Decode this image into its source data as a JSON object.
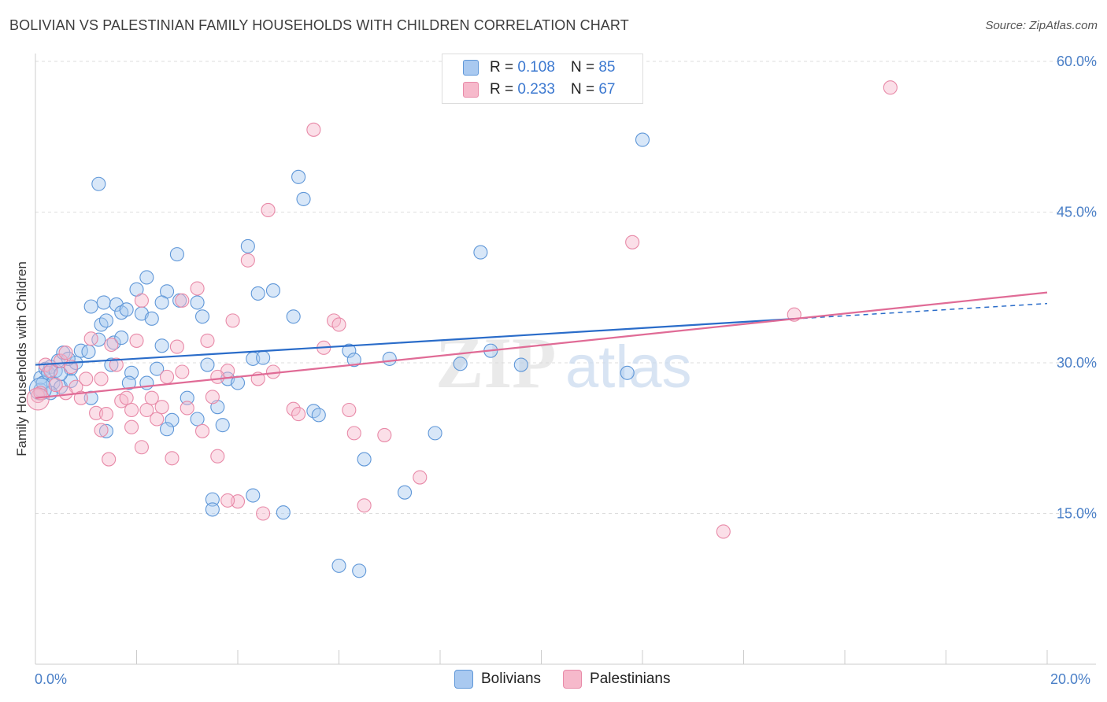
{
  "title": "BOLIVIAN VS PALESTINIAN FAMILY HOUSEHOLDS WITH CHILDREN CORRELATION CHART",
  "source": "Source: ZipAtlas.com",
  "watermark": {
    "zip": "ZIP",
    "atlas": "atlas"
  },
  "legend": {
    "rows": [
      {
        "r_label": "R =",
        "r_value": "0.108",
        "n_label": "N =",
        "n_value": "85"
      },
      {
        "r_label": "R =",
        "r_value": "0.233",
        "n_label": "N =",
        "n_value": "67"
      }
    ]
  },
  "bottom_legend": {
    "bolivians": "Bolivians",
    "palestinians": "Palestinians"
  },
  "colors": {
    "blue_fill": "#a9c9f0",
    "blue_stroke": "#5f97d8",
    "blue_line": "#2a6cc9",
    "pink_fill": "#f6b9cb",
    "pink_stroke": "#e88aa8",
    "pink_line": "#e06b96",
    "tick_text": "#4a7fc7"
  },
  "chart_data": {
    "type": "scatter",
    "title": "BOLIVIAN VS PALESTINIAN FAMILY HOUSEHOLDS WITH CHILDREN CORRELATION CHART",
    "xlabel": "",
    "ylabel": "Family Households with Children",
    "xlim": [
      0,
      20
    ],
    "ylim": [
      0,
      60
    ],
    "x_tick_labels": [
      "0.0%",
      "20.0%"
    ],
    "y_ticks": [
      15,
      30,
      45,
      60
    ],
    "y_tick_labels": [
      "15.0%",
      "30.0%",
      "45.0%",
      "60.0%"
    ],
    "grid": true,
    "series": [
      {
        "name": "Bolivians",
        "R": 0.108,
        "N": 85,
        "trend": {
          "x": [
            0,
            20
          ],
          "y": [
            29.8,
            35.9
          ],
          "solid_until_x": 15.0
        },
        "points": [
          [
            0.1,
            28.5
          ],
          [
            0.1,
            27.3
          ],
          [
            0.2,
            29.4
          ],
          [
            0.15,
            28.0
          ],
          [
            0.3,
            29.6
          ],
          [
            0.25,
            29.0
          ],
          [
            0.35,
            28.0
          ],
          [
            0.4,
            29.2
          ],
          [
            0.5,
            27.6
          ],
          [
            0.45,
            30.2
          ],
          [
            0.55,
            31.0
          ],
          [
            0.7,
            29.4
          ],
          [
            0.8,
            30.0
          ],
          [
            0.9,
            31.2
          ],
          [
            0.7,
            28.2
          ],
          [
            0.65,
            30.4
          ],
          [
            1.1,
            35.6
          ],
          [
            1.1,
            26.5
          ],
          [
            1.3,
            33.8
          ],
          [
            1.35,
            36.0
          ],
          [
            1.4,
            34.2
          ],
          [
            1.25,
            32.3
          ],
          [
            1.5,
            29.8
          ],
          [
            1.55,
            32.0
          ],
          [
            1.6,
            35.8
          ],
          [
            1.7,
            35.0
          ],
          [
            1.8,
            35.3
          ],
          [
            1.7,
            32.5
          ],
          [
            1.9,
            29.0
          ],
          [
            1.85,
            28.0
          ],
          [
            2.0,
            37.3
          ],
          [
            2.1,
            34.9
          ],
          [
            2.2,
            38.5
          ],
          [
            2.3,
            34.4
          ],
          [
            2.4,
            29.4
          ],
          [
            2.5,
            31.7
          ],
          [
            2.6,
            37.1
          ],
          [
            2.7,
            24.3
          ],
          [
            2.2,
            28.0
          ],
          [
            2.5,
            36.0
          ],
          [
            2.8,
            40.8
          ],
          [
            3.0,
            26.5
          ],
          [
            3.2,
            36.0
          ],
          [
            3.3,
            34.6
          ],
          [
            3.4,
            29.8
          ],
          [
            3.2,
            24.4
          ],
          [
            3.6,
            25.6
          ],
          [
            3.8,
            28.4
          ],
          [
            4.2,
            41.6
          ],
          [
            4.0,
            28.0
          ],
          [
            4.3,
            30.4
          ],
          [
            4.4,
            36.9
          ],
          [
            4.5,
            30.5
          ],
          [
            4.7,
            37.2
          ],
          [
            5.2,
            48.5
          ],
          [
            5.3,
            46.3
          ],
          [
            5.1,
            34.6
          ],
          [
            5.5,
            25.2
          ],
          [
            5.6,
            24.8
          ],
          [
            6.2,
            31.2
          ],
          [
            6.3,
            30.3
          ],
          [
            6.5,
            20.4
          ],
          [
            7.0,
            30.4
          ],
          [
            7.3,
            17.1
          ],
          [
            7.9,
            23.0
          ],
          [
            8.4,
            29.9
          ],
          [
            8.8,
            41.0
          ],
          [
            9.0,
            31.2
          ],
          [
            9.6,
            29.8
          ],
          [
            12.0,
            52.2
          ],
          [
            11.7,
            29.0
          ],
          [
            1.4,
            23.2
          ],
          [
            2.6,
            23.4
          ],
          [
            3.5,
            16.4
          ],
          [
            3.5,
            15.4
          ],
          [
            4.3,
            16.8
          ],
          [
            4.9,
            15.1
          ],
          [
            6.0,
            9.8
          ],
          [
            6.4,
            9.3
          ],
          [
            1.25,
            47.8
          ],
          [
            3.7,
            23.8
          ],
          [
            0.3,
            27.0
          ],
          [
            1.05,
            31.1
          ],
          [
            0.5,
            28.9
          ],
          [
            2.85,
            36.2
          ]
        ]
      },
      {
        "name": "Palestinians",
        "R": 0.233,
        "N": 67,
        "trend": {
          "x": [
            0,
            20
          ],
          "y": [
            26.5,
            37.0
          ]
        },
        "points": [
          [
            0.05,
            26.7
          ],
          [
            0.1,
            27.0
          ],
          [
            0.2,
            29.8
          ],
          [
            0.3,
            29.2
          ],
          [
            0.4,
            27.8
          ],
          [
            0.5,
            30.2
          ],
          [
            0.6,
            31.0
          ],
          [
            0.7,
            29.6
          ],
          [
            0.8,
            27.6
          ],
          [
            0.9,
            26.5
          ],
          [
            1.0,
            28.4
          ],
          [
            1.1,
            32.4
          ],
          [
            1.2,
            25.0
          ],
          [
            1.3,
            28.4
          ],
          [
            1.4,
            24.9
          ],
          [
            1.5,
            31.8
          ],
          [
            1.6,
            29.8
          ],
          [
            1.7,
            26.2
          ],
          [
            1.8,
            26.5
          ],
          [
            1.9,
            23.6
          ],
          [
            2.0,
            32.2
          ],
          [
            2.1,
            36.2
          ],
          [
            2.2,
            25.3
          ],
          [
            2.3,
            26.5
          ],
          [
            2.4,
            24.4
          ],
          [
            2.5,
            25.6
          ],
          [
            2.6,
            28.6
          ],
          [
            2.7,
            20.5
          ],
          [
            2.8,
            31.6
          ],
          [
            2.9,
            29.1
          ],
          [
            3.0,
            25.5
          ],
          [
            3.2,
            37.4
          ],
          [
            3.3,
            23.2
          ],
          [
            3.4,
            32.2
          ],
          [
            3.5,
            26.6
          ],
          [
            3.6,
            20.7
          ],
          [
            3.8,
            29.2
          ],
          [
            3.9,
            34.2
          ],
          [
            4.0,
            16.2
          ],
          [
            4.2,
            40.2
          ],
          [
            4.4,
            28.4
          ],
          [
            4.5,
            15.0
          ],
          [
            4.7,
            29.1
          ],
          [
            4.6,
            45.2
          ],
          [
            5.1,
            25.4
          ],
          [
            5.2,
            24.9
          ],
          [
            5.5,
            53.2
          ],
          [
            5.7,
            31.5
          ],
          [
            5.9,
            34.2
          ],
          [
            6.0,
            33.8
          ],
          [
            6.2,
            25.3
          ],
          [
            6.3,
            23.0
          ],
          [
            6.5,
            15.8
          ],
          [
            6.9,
            22.8
          ],
          [
            7.6,
            18.6
          ],
          [
            11.8,
            42.0
          ],
          [
            13.6,
            13.2
          ],
          [
            15.0,
            34.8
          ],
          [
            16.9,
            57.4
          ],
          [
            1.45,
            20.4
          ],
          [
            2.1,
            21.6
          ],
          [
            3.8,
            16.3
          ],
          [
            0.6,
            27.0
          ],
          [
            1.9,
            25.3
          ],
          [
            2.9,
            36.2
          ],
          [
            3.6,
            28.6
          ],
          [
            1.3,
            23.3
          ]
        ]
      }
    ]
  }
}
